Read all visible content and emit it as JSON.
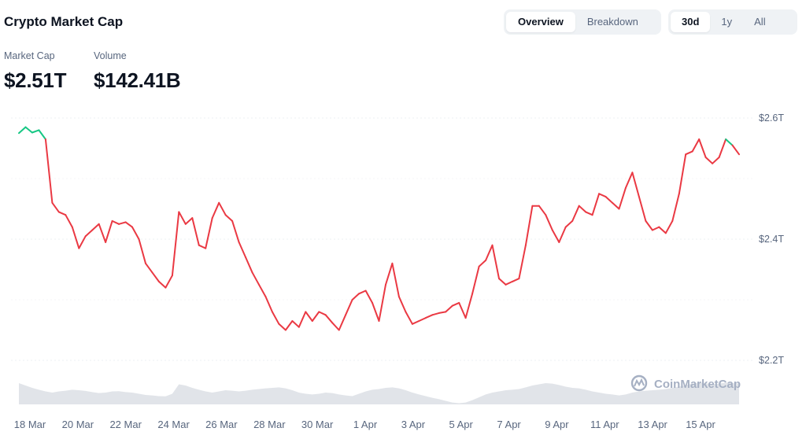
{
  "header": {
    "title": "Crypto Market Cap",
    "view_tabs": [
      {
        "label": "Overview",
        "active": true
      },
      {
        "label": "Breakdown",
        "active": false
      }
    ],
    "range_tabs": [
      {
        "label": "30d",
        "active": true
      },
      {
        "label": "1y",
        "active": false
      },
      {
        "label": "All",
        "active": false
      }
    ]
  },
  "stats": {
    "market_cap": {
      "label": "Market Cap",
      "value": "$2.51T"
    },
    "volume": {
      "label": "Volume",
      "value": "$142.41B"
    }
  },
  "watermark": "CoinMarketCap",
  "colors": {
    "up": "#16c784",
    "down": "#ea3943",
    "volume_fill": "#d7dbe2",
    "grid": "#eef0f3"
  },
  "chart_data": {
    "type": "line",
    "y_ticks": [
      "$2.6T",
      "$2.4T",
      "$2.2T"
    ],
    "x_ticks": [
      "18 Mar",
      "20 Mar",
      "22 Mar",
      "24 Mar",
      "26 Mar",
      "28 Mar",
      "30 Mar",
      "1 Apr",
      "3 Apr",
      "5 Apr",
      "7 Apr",
      "9 Apr",
      "11 Apr",
      "13 Apr",
      "15 Apr"
    ],
    "ylim": [
      2.2,
      2.6
    ],
    "baseline": 2.555,
    "series": [
      {
        "values": [
          2.575,
          2.585,
          2.576,
          2.58,
          2.565,
          2.46,
          2.445,
          2.44,
          2.42,
          2.385,
          2.405,
          2.415,
          2.425,
          2.395,
          2.43,
          2.425,
          2.428,
          2.42,
          2.4,
          2.36,
          2.345,
          2.33,
          2.32,
          2.34,
          2.445,
          2.425,
          2.435,
          2.39,
          2.385,
          2.435,
          2.46,
          2.44,
          2.43,
          2.395,
          2.37,
          2.345,
          2.325,
          2.305,
          2.28,
          2.26,
          2.25,
          2.265,
          2.255,
          2.28,
          2.265,
          2.28,
          2.275,
          2.262,
          2.25,
          2.275,
          2.3,
          2.31,
          2.315,
          2.295,
          2.265,
          2.325,
          2.36,
          2.305,
          2.28,
          2.26,
          2.265,
          2.27,
          2.275,
          2.278,
          2.28,
          2.29,
          2.295,
          2.27,
          2.31,
          2.355,
          2.365,
          2.39,
          2.335,
          2.325,
          2.33,
          2.335,
          2.39,
          2.455,
          2.455,
          2.44,
          2.415,
          2.395,
          2.42,
          2.43,
          2.455,
          2.445,
          2.44,
          2.475,
          2.47,
          2.46,
          2.45,
          2.485,
          2.51,
          2.47,
          2.43,
          2.415,
          2.42,
          2.41,
          2.43,
          2.475,
          2.54,
          2.545,
          2.565,
          2.535,
          2.525,
          2.535,
          2.565,
          2.555,
          2.54
        ]
      }
    ],
    "volume": [
      0.9,
      0.8,
      0.7,
      0.62,
      0.55,
      0.5,
      0.55,
      0.58,
      0.62,
      0.6,
      0.57,
      0.52,
      0.48,
      0.5,
      0.55,
      0.56,
      0.52,
      0.5,
      0.45,
      0.4,
      0.38,
      0.35,
      0.34,
      0.45,
      0.85,
      0.8,
      0.7,
      0.62,
      0.55,
      0.5,
      0.55,
      0.6,
      0.58,
      0.55,
      0.58,
      0.62,
      0.65,
      0.68,
      0.7,
      0.72,
      0.68,
      0.6,
      0.5,
      0.45,
      0.42,
      0.45,
      0.5,
      0.48,
      0.42,
      0.38,
      0.35,
      0.45,
      0.55,
      0.62,
      0.65,
      0.7,
      0.72,
      0.68,
      0.6,
      0.5,
      0.42,
      0.35,
      0.28,
      0.22,
      0.15,
      0.08,
      0.05,
      0.08,
      0.18,
      0.3,
      0.42,
      0.5,
      0.55,
      0.6,
      0.62,
      0.65,
      0.72,
      0.8,
      0.85,
      0.9,
      0.88,
      0.82,
      0.75,
      0.7,
      0.68,
      0.62,
      0.55,
      0.5,
      0.45,
      0.42,
      0.38,
      0.42,
      0.5,
      0.55,
      0.58,
      0.6,
      0.62,
      0.65,
      0.7,
      0.75,
      0.82,
      0.88,
      0.92,
      0.9,
      0.85,
      0.88,
      0.92,
      0.9,
      0.88
    ]
  }
}
